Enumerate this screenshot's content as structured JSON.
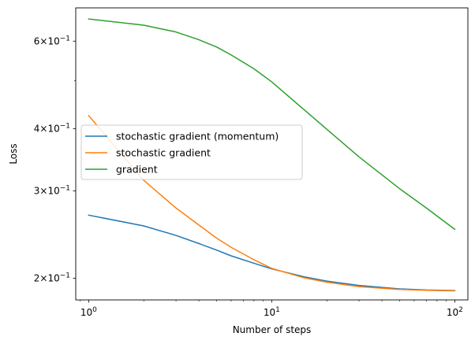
{
  "chart_data": {
    "type": "line",
    "xscale": "log",
    "yscale": "log",
    "xlabel": "Number of steps",
    "ylabel": "Loss",
    "xlim": [
      0.85,
      118
    ],
    "ylim": [
      0.181,
      0.7
    ],
    "grid": false,
    "legend_position": "center-left",
    "x_ticks": [
      {
        "value": 1,
        "base": "10",
        "exp": "0"
      },
      {
        "value": 10,
        "base": "10",
        "exp": "1"
      },
      {
        "value": 100,
        "base": "10",
        "exp": "2"
      }
    ],
    "y_ticks": [
      {
        "value": 0.2,
        "mant": "2",
        "base": "10",
        "exp": "−1"
      },
      {
        "value": 0.3,
        "mant": "3",
        "base": "10",
        "exp": "−1"
      },
      {
        "value": 0.4,
        "mant": "4",
        "base": "10",
        "exp": "−1"
      },
      {
        "value": 0.6,
        "mant": "6",
        "base": "10",
        "exp": "−1"
      }
    ],
    "x": [
      1,
      2,
      3,
      4,
      5,
      6,
      8,
      10,
      15,
      20,
      30,
      50,
      70,
      100
    ],
    "series": [
      {
        "name": "stochastic gradient (momentum)",
        "color": "#1f77b4",
        "values": [
          0.268,
          0.255,
          0.244,
          0.235,
          0.228,
          0.222,
          0.2145,
          0.209,
          0.2015,
          0.1975,
          0.1935,
          0.1905,
          0.1895,
          0.189
        ]
      },
      {
        "name": "stochastic gradient",
        "color": "#ff7f0e",
        "values": [
          0.425,
          0.315,
          0.277,
          0.256,
          0.241,
          0.231,
          0.218,
          0.2095,
          0.2005,
          0.1965,
          0.1925,
          0.19,
          0.1893,
          0.1888
        ]
      },
      {
        "name": "gradient",
        "color": "#2ca02c",
        "values": [
          0.665,
          0.646,
          0.626,
          0.604,
          0.584,
          0.563,
          0.528,
          0.497,
          0.437,
          0.399,
          0.351,
          0.303,
          0.277,
          0.251
        ]
      }
    ]
  }
}
